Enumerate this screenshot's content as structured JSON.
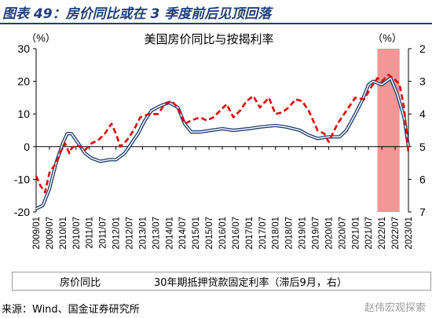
{
  "header": {
    "title": "图表 49：房价同比或在 3 季度前后见顶回落"
  },
  "chart_data": {
    "type": "line",
    "title": "美国房价同比与按揭利率",
    "left_unit": "（%）",
    "right_unit": "（%）",
    "ylim_left": [
      -20,
      30
    ],
    "yticks_left": [
      "30",
      "20",
      "10",
      "0",
      "-10",
      "-20"
    ],
    "ylim_right": [
      2,
      7
    ],
    "y_right_inverted": true,
    "yticks_right": [
      "2",
      "3",
      "4",
      "5",
      "6",
      "7"
    ],
    "xlim": [
      "2009-01",
      "2023-01"
    ],
    "xticks": [
      "2009/01",
      "2009/07",
      "2010/01",
      "2010/07",
      "2011/01",
      "2011/07",
      "2012/01",
      "2012/07",
      "2013/01",
      "2013/07",
      "2014/01",
      "2014/07",
      "2015/01",
      "2015/07",
      "2016/01",
      "2016/07",
      "2017/01",
      "2017/07",
      "2018/01",
      "2018/07",
      "2019/01",
      "2019/07",
      "2020/01",
      "2020/07",
      "2021/01",
      "2021/07",
      "2022/01",
      "2022/07",
      "2023/01"
    ],
    "shaded_region": {
      "from": "2021-11",
      "to": "2022-09",
      "color": "#f28b8b"
    },
    "legend_position": "bottom",
    "series": [
      {
        "name": "房价同比",
        "axis": "left",
        "color": "#1f3f6e",
        "style": "double-line",
        "points": [
          [
            "2009-01",
            -19
          ],
          [
            "2009-04",
            -18
          ],
          [
            "2009-07",
            -13
          ],
          [
            "2009-10",
            -5
          ],
          [
            "2010-01",
            1
          ],
          [
            "2010-03",
            4
          ],
          [
            "2010-05",
            4
          ],
          [
            "2010-08",
            1
          ],
          [
            "2010-11",
            -2
          ],
          [
            "2011-02",
            -3.5
          ],
          [
            "2011-06",
            -4.5
          ],
          [
            "2011-10",
            -4
          ],
          [
            "2012-01",
            -4
          ],
          [
            "2012-05",
            -2
          ],
          [
            "2012-08",
            1
          ],
          [
            "2012-11",
            4
          ],
          [
            "2013-02",
            8
          ],
          [
            "2013-05",
            11
          ],
          [
            "2013-09",
            12.5
          ],
          [
            "2014-01",
            13.5
          ],
          [
            "2014-05",
            12
          ],
          [
            "2014-08",
            7
          ],
          [
            "2014-11",
            4.5
          ],
          [
            "2015-03",
            4.5
          ],
          [
            "2015-08",
            5
          ],
          [
            "2016-01",
            5.5
          ],
          [
            "2016-06",
            5
          ],
          [
            "2017-01",
            5.5
          ],
          [
            "2017-06",
            6
          ],
          [
            "2018-01",
            6.5
          ],
          [
            "2018-06",
            6
          ],
          [
            "2018-12",
            5
          ],
          [
            "2019-04",
            3.5
          ],
          [
            "2019-08",
            2.5
          ],
          [
            "2020-01",
            3
          ],
          [
            "2020-06",
            3
          ],
          [
            "2020-09",
            5
          ],
          [
            "2021-01",
            10
          ],
          [
            "2021-04",
            14
          ],
          [
            "2021-07",
            19
          ],
          [
            "2021-09",
            20
          ],
          [
            "2022-01",
            19
          ],
          [
            "2022-03",
            20
          ],
          [
            "2022-05",
            21
          ],
          [
            "2022-08",
            16
          ],
          [
            "2022-11",
            9
          ],
          [
            "2023-01",
            0
          ]
        ]
      },
      {
        "name": "30年期抵押贷款固定利率（滞后9月，右）",
        "axis": "right",
        "color": "#e00000",
        "style": "dashed",
        "points": [
          [
            "2009-01",
            5.9
          ],
          [
            "2009-03",
            6.2
          ],
          [
            "2009-05",
            6.4
          ],
          [
            "2009-07",
            5.8
          ],
          [
            "2009-10",
            5.5
          ],
          [
            "2010-01",
            5
          ],
          [
            "2010-02",
            4.9
          ],
          [
            "2010-04",
            5.2
          ],
          [
            "2010-05",
            5.05
          ],
          [
            "2010-07",
            4.95
          ],
          [
            "2010-09",
            5
          ],
          [
            "2010-11",
            5.1
          ],
          [
            "2011-02",
            4.9
          ],
          [
            "2011-05",
            4.8
          ],
          [
            "2011-08",
            4.6
          ],
          [
            "2011-11",
            4.3
          ],
          [
            "2012-01",
            4.6
          ],
          [
            "2012-03",
            5
          ],
          [
            "2012-06",
            4.8
          ],
          [
            "2012-09",
            4.5
          ],
          [
            "2012-12",
            4.1
          ],
          [
            "2013-04",
            4
          ],
          [
            "2013-08",
            4
          ],
          [
            "2013-11",
            3.7
          ],
          [
            "2014-02",
            3.6
          ],
          [
            "2014-05",
            3.8
          ],
          [
            "2014-08",
            4.3
          ],
          [
            "2014-11",
            4.2
          ],
          [
            "2015-03",
            4.1
          ],
          [
            "2015-06",
            4.2
          ],
          [
            "2015-09",
            4.1
          ],
          [
            "2015-12",
            3.9
          ],
          [
            "2016-03",
            3.7
          ],
          [
            "2016-06",
            4.1
          ],
          [
            "2016-09",
            3.9
          ],
          [
            "2016-12",
            3.6
          ],
          [
            "2017-03",
            3.45
          ],
          [
            "2017-06",
            3.8
          ],
          [
            "2017-10",
            3.5
          ],
          [
            "2018-01",
            4
          ],
          [
            "2018-04",
            3.95
          ],
          [
            "2018-07",
            3.8
          ],
          [
            "2018-10",
            3.55
          ],
          [
            "2019-01",
            3.6
          ],
          [
            "2019-04",
            3.9
          ],
          [
            "2019-08",
            4.5
          ],
          [
            "2019-11",
            4.6
          ],
          [
            "2020-01",
            4.85
          ],
          [
            "2020-05",
            4.3
          ],
          [
            "2020-09",
            3.9
          ],
          [
            "2021-01",
            3.5
          ],
          [
            "2021-05",
            3.55
          ],
          [
            "2021-08",
            3.2
          ],
          [
            "2021-11",
            2.9
          ],
          [
            "2022-01",
            3
          ],
          [
            "2022-04",
            2.8
          ],
          [
            "2022-07",
            2.95
          ],
          [
            "2022-09",
            3.1
          ],
          [
            "2022-11",
            3.8
          ],
          [
            "2023-01",
            5.2
          ]
        ]
      }
    ]
  },
  "footer": {
    "source": "来源：Wind、国金证券研究所",
    "watermark": "赵伟宏观探索"
  }
}
